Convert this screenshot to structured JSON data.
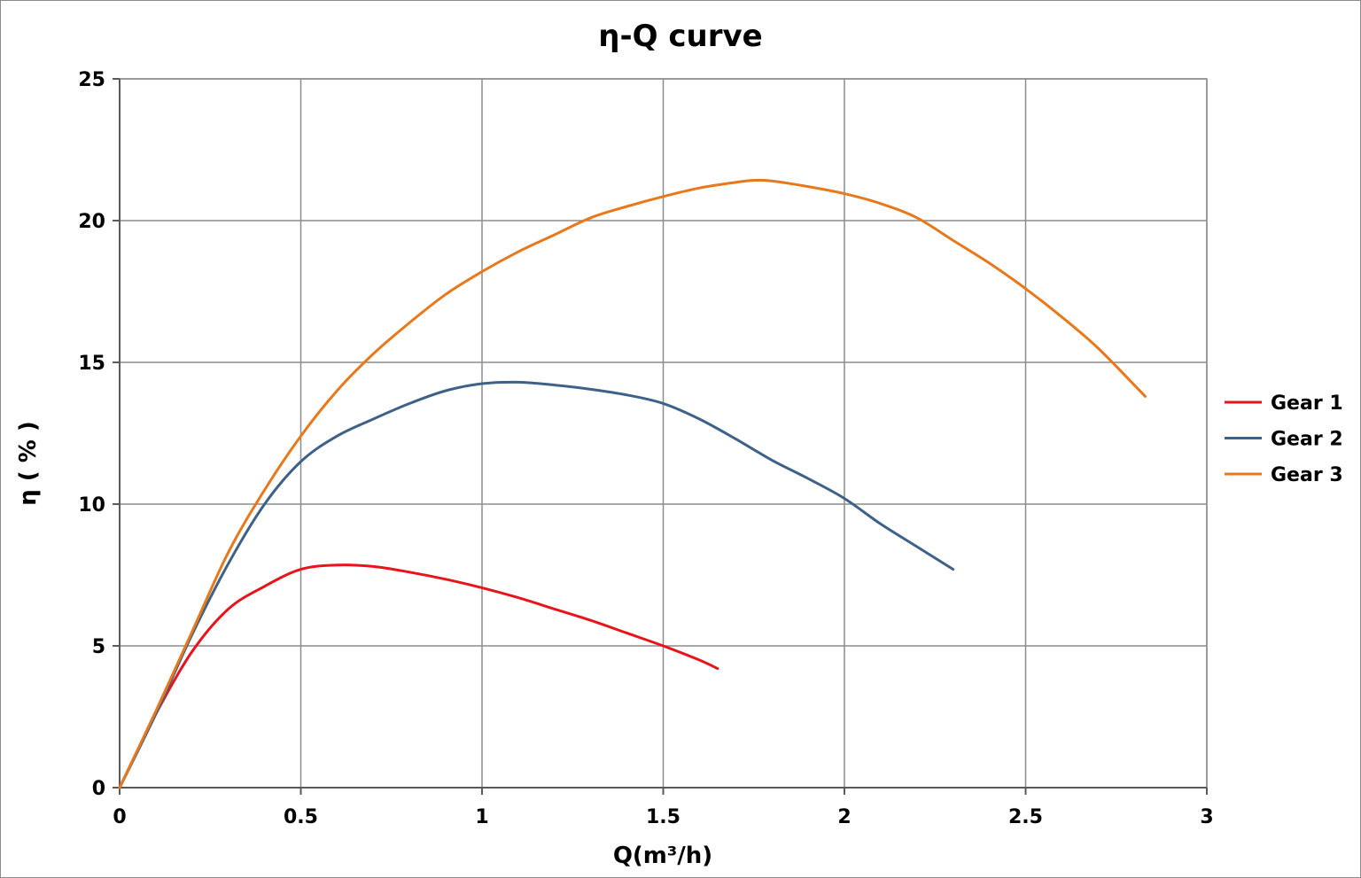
{
  "chart_data": {
    "type": "line",
    "title": "η-Q  curve",
    "xlabel": "Q(m³/h)",
    "ylabel": "η ( % )",
    "xlim": [
      0,
      3
    ],
    "ylim": [
      0,
      25
    ],
    "xticks": [
      "0",
      "0.5",
      "1",
      "1.5",
      "2",
      "2.5",
      "3"
    ],
    "yticks": [
      "0",
      "5",
      "10",
      "15",
      "20",
      "25"
    ],
    "grid": true,
    "legend_position": "right",
    "series": [
      {
        "name": "Gear 1",
        "color": "#e8141b",
        "x": [
          0,
          0.1,
          0.2,
          0.3,
          0.4,
          0.5,
          0.6,
          0.7,
          0.8,
          0.9,
          1.0,
          1.1,
          1.2,
          1.3,
          1.4,
          1.5,
          1.6,
          1.65
        ],
        "y": [
          0,
          2.6,
          4.8,
          6.3,
          7.1,
          7.7,
          7.85,
          7.8,
          7.6,
          7.35,
          7.05,
          6.7,
          6.3,
          5.9,
          5.45,
          5.0,
          4.5,
          4.2
        ]
      },
      {
        "name": "Gear 2",
        "color": "#3e6187",
        "x": [
          0,
          0.1,
          0.2,
          0.3,
          0.4,
          0.5,
          0.6,
          0.7,
          0.8,
          0.9,
          1.0,
          1.1,
          1.2,
          1.3,
          1.4,
          1.5,
          1.6,
          1.7,
          1.8,
          1.9,
          2.0,
          2.1,
          2.2,
          2.3
        ],
        "y": [
          0,
          2.6,
          5.4,
          7.9,
          10.0,
          11.5,
          12.4,
          13.0,
          13.55,
          14.0,
          14.25,
          14.3,
          14.2,
          14.05,
          13.85,
          13.55,
          13.0,
          12.3,
          11.55,
          10.9,
          10.2,
          9.3,
          8.5,
          7.7
        ]
      },
      {
        "name": "Gear 3",
        "color": "#e8781c",
        "x": [
          0,
          0.1,
          0.2,
          0.3,
          0.4,
          0.5,
          0.6,
          0.7,
          0.8,
          0.9,
          1.0,
          1.1,
          1.2,
          1.3,
          1.4,
          1.5,
          1.6,
          1.7,
          1.75,
          1.8,
          1.9,
          2.0,
          2.1,
          2.2,
          2.3,
          2.4,
          2.5,
          2.6,
          2.7,
          2.83
        ],
        "y": [
          0,
          2.7,
          5.5,
          8.3,
          10.5,
          12.4,
          14.0,
          15.3,
          16.4,
          17.4,
          18.2,
          18.9,
          19.5,
          20.1,
          20.5,
          20.85,
          21.15,
          21.35,
          21.42,
          21.4,
          21.2,
          20.95,
          20.6,
          20.1,
          19.3,
          18.5,
          17.6,
          16.6,
          15.5,
          13.8
        ]
      }
    ]
  }
}
